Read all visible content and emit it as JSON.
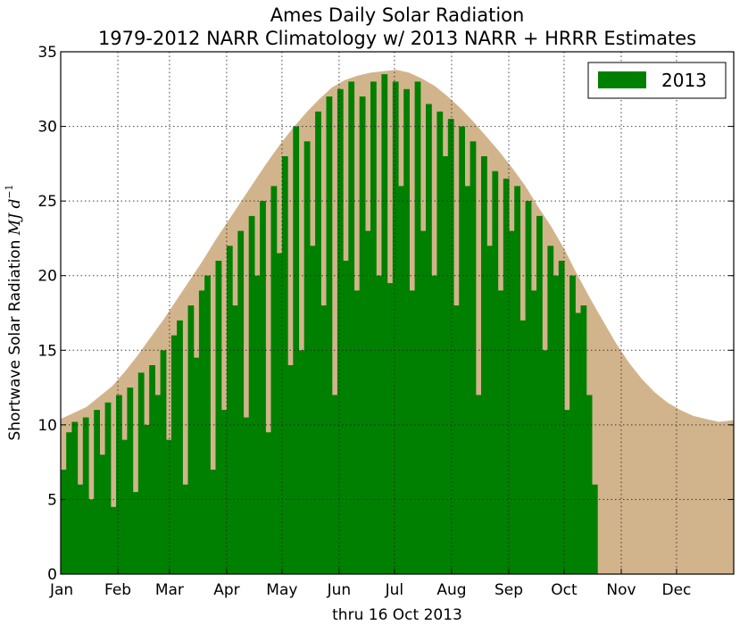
{
  "chart_data": {
    "type": "area",
    "title": "Ames Daily Solar Radiation",
    "subtitle": "1979-2012 NARR Climatology w/ 2013 NARR + HRRR Estimates",
    "xlabel": "thru 16 Oct 2013",
    "ylabel": "Shortwave Solar Radiation",
    "ylabel_units": "MJ d^-1",
    "ylim": [
      0,
      35
    ],
    "xlim": [
      1,
      366
    ],
    "yticks": [
      0,
      5,
      10,
      15,
      20,
      25,
      30,
      35
    ],
    "xtick_labels": [
      "Jan",
      "Feb",
      "Mar",
      "Apr",
      "May",
      "Jun",
      "Jul",
      "Aug",
      "Sep",
      "Oct",
      "Nov",
      "Dec"
    ],
    "xtick_days": [
      1,
      32,
      60,
      91,
      121,
      152,
      182,
      213,
      244,
      274,
      305,
      335
    ],
    "grid": true,
    "legend": {
      "position": "top-right",
      "entries": [
        "2013"
      ]
    },
    "colors": {
      "climatology": "#d2b48c",
      "year2013": "#008000"
    },
    "climatology": {
      "name": "",
      "x": [
        1,
        8,
        15,
        22,
        29,
        36,
        43,
        50,
        57,
        64,
        71,
        78,
        85,
        92,
        99,
        106,
        113,
        120,
        127,
        134,
        141,
        148,
        155,
        162,
        169,
        176,
        183,
        190,
        197,
        204,
        211,
        218,
        225,
        232,
        239,
        246,
        253,
        260,
        267,
        274,
        281,
        288,
        295,
        302,
        309,
        316,
        323,
        330,
        337,
        344,
        351,
        358,
        365
      ],
      "y": [
        10.4,
        10.8,
        11.2,
        11.9,
        12.6,
        13.6,
        14.7,
        15.9,
        17.1,
        18.4,
        19.7,
        21.0,
        22.4,
        23.7,
        25.0,
        26.3,
        27.6,
        28.8,
        29.9,
        30.9,
        31.8,
        32.6,
        33.1,
        33.4,
        33.6,
        33.7,
        33.8,
        33.6,
        33.2,
        32.7,
        32.0,
        31.2,
        30.3,
        29.3,
        28.3,
        27.2,
        26.0,
        24.6,
        23.3,
        21.8,
        20.1,
        18.5,
        17.0,
        15.5,
        14.2,
        13.1,
        12.2,
        11.5,
        11.0,
        10.6,
        10.4,
        10.2,
        10.3
      ]
    },
    "series_2013": {
      "name": "2013",
      "x": [
        1,
        4,
        7,
        10,
        13,
        16,
        19,
        22,
        25,
        28,
        31,
        34,
        37,
        40,
        43,
        46,
        49,
        52,
        55,
        58,
        61,
        64,
        67,
        70,
        73,
        76,
        79,
        82,
        85,
        88,
        91,
        94,
        97,
        100,
        103,
        106,
        109,
        112,
        115,
        118,
        121,
        124,
        127,
        130,
        133,
        136,
        139,
        142,
        145,
        148,
        151,
        154,
        157,
        160,
        163,
        166,
        169,
        172,
        175,
        178,
        181,
        184,
        187,
        190,
        193,
        196,
        199,
        202,
        205,
        208,
        211,
        214,
        217,
        220,
        223,
        226,
        229,
        232,
        235,
        238,
        241,
        244,
        247,
        250,
        253,
        256,
        259,
        262,
        265,
        268,
        271,
        274,
        277,
        280,
        283,
        286,
        289
      ],
      "y": [
        7.0,
        9.5,
        10.2,
        6.0,
        10.5,
        5.0,
        11.0,
        8.0,
        11.5,
        4.5,
        12.0,
        9.0,
        12.5,
        5.5,
        13.5,
        10.0,
        14.0,
        12.0,
        15.0,
        9.0,
        16.0,
        17.0,
        6.0,
        18.0,
        14.5,
        19.0,
        20.0,
        7.0,
        21.0,
        11.0,
        22.0,
        18.0,
        23.0,
        10.5,
        24.0,
        20.0,
        25.0,
        9.5,
        26.0,
        21.5,
        28.0,
        14.0,
        30.0,
        15.0,
        29.0,
        22.0,
        31.0,
        18.0,
        32.0,
        12.0,
        32.5,
        21.0,
        33.0,
        19.0,
        32.0,
        23.0,
        33.0,
        20.0,
        33.5,
        19.5,
        33.0,
        26.0,
        32.5,
        19.0,
        33.0,
        23.0,
        31.5,
        20.0,
        31.0,
        28.0,
        30.5,
        18.0,
        30.0,
        26.0,
        29.0,
        12.0,
        28.0,
        22.0,
        27.0,
        19.0,
        26.5,
        23.0,
        26.0,
        17.0,
        25.0,
        19.0,
        24.0,
        15.0,
        22.0,
        20.0,
        21.0,
        11.0,
        20.0,
        17.5,
        18.0,
        12.0,
        6.0
      ]
    }
  }
}
